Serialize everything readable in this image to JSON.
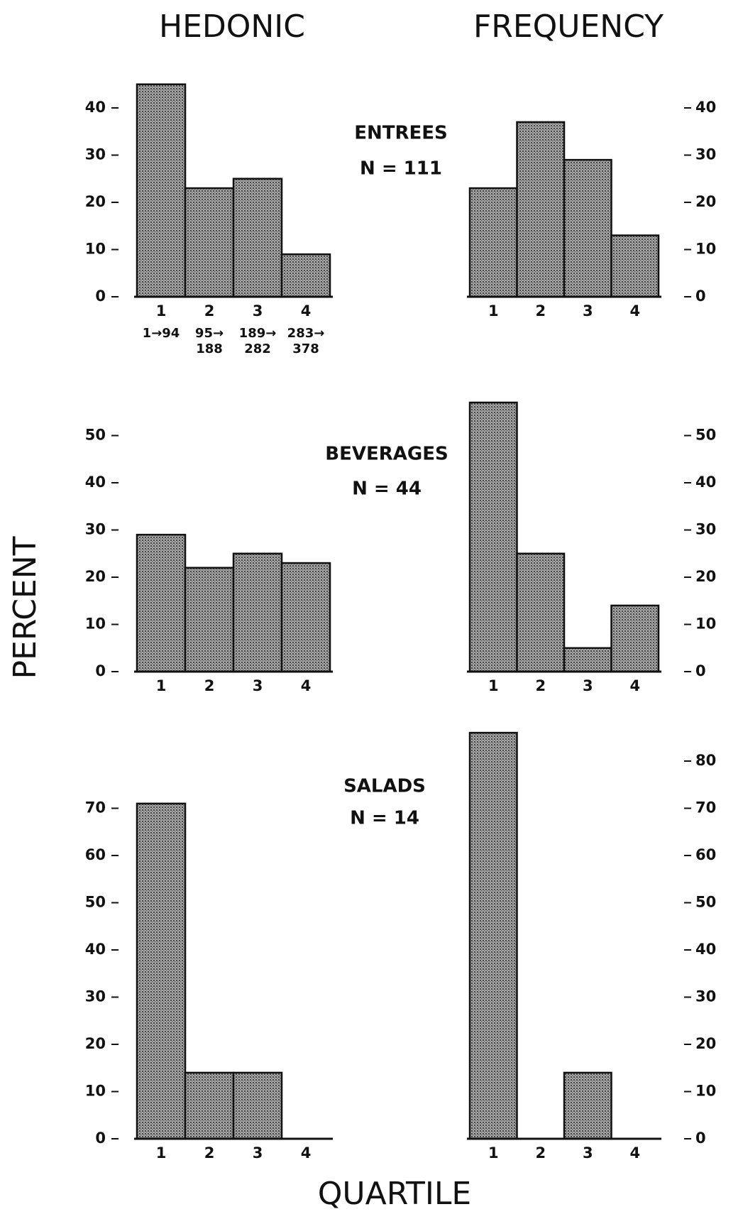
{
  "column_titles": [
    "HEDONIC",
    "FREQUENCY"
  ],
  "y_label": "PERCENT",
  "x_label": "QUARTILE",
  "panels": [
    {
      "title": "ENTREES",
      "subtitle": "N = 111"
    },
    {
      "title": "BEVERAGES",
      "subtitle": "N = 44"
    },
    {
      "title": "SALADS",
      "subtitle": "N = 14"
    }
  ],
  "chart_data": [
    {
      "type": "bar",
      "panel": "ENTREES",
      "column": "HEDONIC",
      "axis_side": "left",
      "color": "#a9a9a9",
      "categories": [
        "1",
        "2",
        "3",
        "4"
      ],
      "category_ranges": [
        [
          "1→94"
        ],
        [
          "95→",
          "188"
        ],
        [
          "189→",
          "282"
        ],
        [
          "283→",
          "378"
        ]
      ],
      "values": [
        45,
        23,
        25,
        9
      ],
      "ylim": [
        0,
        45
      ],
      "yticks": [
        0,
        10,
        20,
        30,
        40
      ]
    },
    {
      "type": "bar",
      "panel": "ENTREES",
      "column": "FREQUENCY",
      "axis_side": "right",
      "color": "#a9a9a9",
      "categories": [
        "1",
        "2",
        "3",
        "4"
      ],
      "values": [
        23,
        37,
        29,
        13
      ],
      "ylim": [
        0,
        45
      ],
      "yticks": [
        0,
        10,
        20,
        30,
        40
      ]
    },
    {
      "type": "bar",
      "panel": "BEVERAGES",
      "column": "HEDONIC",
      "axis_side": "left",
      "color": "#a9a9a9",
      "categories": [
        "1",
        "2",
        "3",
        "4"
      ],
      "values": [
        29,
        22,
        25,
        23
      ],
      "ylim": [
        0,
        60
      ],
      "yticks": [
        0,
        10,
        20,
        30,
        40,
        50
      ]
    },
    {
      "type": "bar",
      "panel": "BEVERAGES",
      "column": "FREQUENCY",
      "axis_side": "right",
      "color": "#a9a9a9",
      "categories": [
        "1",
        "2",
        "3",
        "4"
      ],
      "values": [
        57,
        25,
        5,
        14
      ],
      "ylim": [
        0,
        60
      ],
      "yticks": [
        0,
        10,
        20,
        30,
        40,
        50
      ]
    },
    {
      "type": "bar",
      "panel": "SALADS",
      "column": "HEDONIC",
      "axis_side": "left",
      "color": "#a9a9a9",
      "categories": [
        "1",
        "2",
        "3",
        "4"
      ],
      "values": [
        71,
        14,
        14,
        0
      ],
      "ylim": [
        0,
        90
      ],
      "yticks": [
        0,
        10,
        20,
        30,
        40,
        50,
        60,
        70
      ]
    },
    {
      "type": "bar",
      "panel": "SALADS",
      "column": "FREQUENCY",
      "axis_side": "right",
      "color": "#a9a9a9",
      "categories": [
        "1",
        "2",
        "3",
        "4"
      ],
      "values": [
        86,
        0,
        14,
        0
      ],
      "ylim": [
        0,
        90
      ],
      "yticks": [
        0,
        10,
        20,
        30,
        40,
        50,
        60,
        70,
        80
      ]
    }
  ]
}
